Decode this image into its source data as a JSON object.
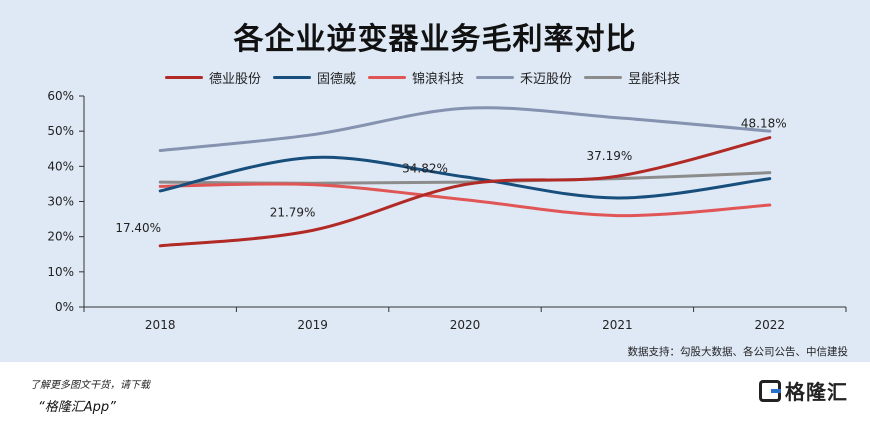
{
  "chart_data": {
    "type": "line",
    "title": "各企业逆变器业务毛利率对比",
    "categories": [
      "2018",
      "2019",
      "2020",
      "2021",
      "2022"
    ],
    "ylim": [
      0,
      60
    ],
    "yticks": [
      "0%",
      "10%",
      "20%",
      "30%",
      "40%",
      "50%",
      "60%"
    ],
    "ytick_values": [
      0,
      10,
      20,
      30,
      40,
      50,
      60
    ],
    "grid": false,
    "legend_position": "top",
    "series": [
      {
        "name": "德业股份",
        "color": "#b22a26",
        "values": [
          17.4,
          21.79,
          34.82,
          37.19,
          48.18
        ],
        "data_labels": [
          "17.40%",
          "21.79%",
          "34.82%",
          "37.19%",
          "48.18%"
        ]
      },
      {
        "name": "固德威",
        "color": "#174e7c",
        "values": [
          33.0,
          42.5,
          37.0,
          31.0,
          36.5
        ]
      },
      {
        "name": "锦浪科技",
        "color": "#e05656",
        "values": [
          34.3,
          34.8,
          30.5,
          26.0,
          29.0
        ]
      },
      {
        "name": "禾迈股份",
        "color": "#8593b0",
        "values": [
          44.5,
          49.0,
          56.5,
          53.8,
          50.0
        ]
      },
      {
        "name": "昱能科技",
        "color": "#8c8c8c",
        "values": [
          35.5,
          35.2,
          35.5,
          36.5,
          38.2
        ]
      }
    ]
  },
  "source": "数据支持：勾股大数据、各公司公告、中信建投",
  "footer": {
    "line1": "了解更多图文干货，请下载",
    "line2": "“格隆汇App”",
    "logo_text": "格隆汇"
  },
  "colors": {
    "panel_bg": "#dfe9f5"
  }
}
